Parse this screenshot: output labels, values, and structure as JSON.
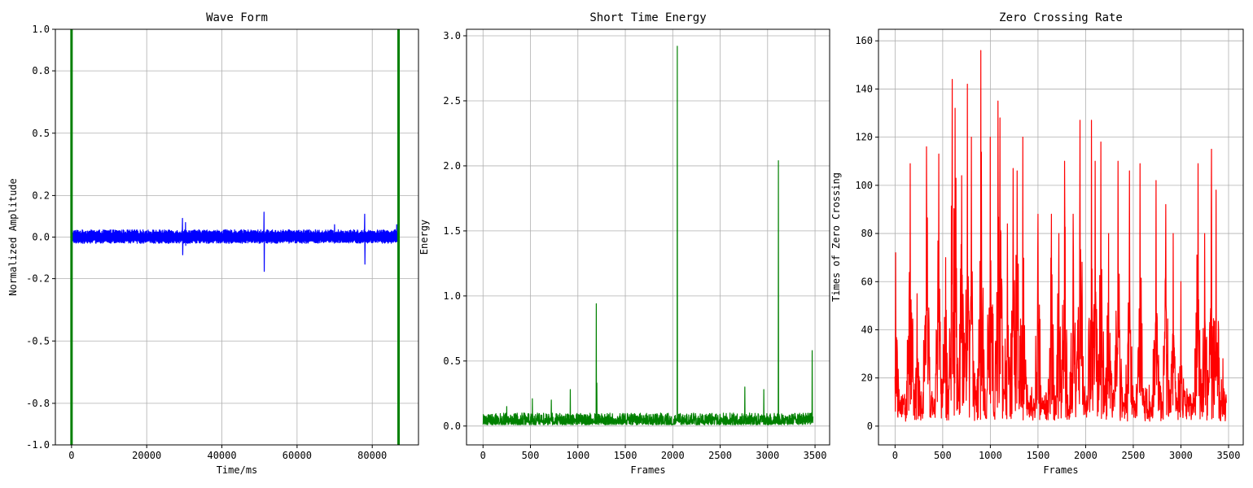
{
  "chart_data": [
    {
      "type": "line",
      "title": "Wave Form",
      "xlabel": "Time/ms",
      "ylabel": "Normalized Amplitude",
      "xlim": [
        -4300,
        92300
      ],
      "ylim": [
        -1.0,
        1.0
      ],
      "xticks": [
        0,
        20000,
        40000,
        60000,
        80000
      ],
      "xtick_labels": [
        "0",
        "20000",
        "40000",
        "60000",
        "80000"
      ],
      "yticks": [
        -1.0,
        -0.8,
        -0.5,
        -0.2,
        0.0,
        0.2,
        0.5,
        0.8,
        1.0
      ],
      "ytick_labels": [
        "-1.0",
        "-0.8",
        "-0.5",
        "-0.2",
        "0.0",
        "0.2",
        "0.5",
        "0.8",
        "1.0"
      ],
      "grid": true,
      "series": [
        {
          "color": "#0000ff",
          "kind": "waveform",
          "x_range": [
            0,
            87000
          ],
          "noise_band": [
            -0.03,
            0.035
          ],
          "spikes": [
            [
              29500,
              0.09,
              -0.085
            ],
            [
              30300,
              0.07,
              -0.04
            ],
            [
              51200,
              0.12,
              -0.165
            ],
            [
              70000,
              0.06,
              -0.02
            ],
            [
              78000,
              0.11,
              -0.13
            ],
            [
              86500,
              0.06,
              -0.02
            ]
          ]
        }
      ],
      "vlines": [
        {
          "x": 0,
          "color": "#008000"
        },
        {
          "x": 87000,
          "color": "#008000"
        }
      ]
    },
    {
      "type": "line",
      "title": "Short Time Energy",
      "xlabel": "Frames",
      "ylabel": "Energy",
      "xlim": [
        -174,
        3654
      ],
      "ylim": [
        -0.145,
        3.05
      ],
      "xticks": [
        0,
        500,
        1000,
        1500,
        2000,
        2500,
        3000,
        3500
      ],
      "xtick_labels": [
        "0",
        "500",
        "1000",
        "1500",
        "2000",
        "2500",
        "3000",
        "3500"
      ],
      "yticks": [
        0.0,
        0.5,
        1.0,
        1.5,
        2.0,
        2.5,
        3.0
      ],
      "ytick_labels": [
        "0.0",
        "0.5",
        "1.0",
        "1.5",
        "2.0",
        "2.5",
        "3.0"
      ],
      "grid": true,
      "series": [
        {
          "color": "#008000",
          "kind": "energy",
          "n_frames": 3480,
          "baseline": [
            0.01,
            0.1
          ],
          "peaks": [
            [
              1195,
              0.94
            ],
            [
              1200,
              0.33
            ],
            [
              2048,
              2.92
            ],
            [
              3115,
              2.04
            ],
            [
              3470,
              0.58
            ],
            [
              2960,
              0.28
            ],
            [
              2760,
              0.3
            ],
            [
              920,
              0.28
            ],
            [
              520,
              0.21
            ],
            [
              720,
              0.2
            ],
            [
              250,
              0.15
            ]
          ]
        }
      ]
    },
    {
      "type": "line",
      "title": "Zero Crossing Rate",
      "xlabel": "Frames",
      "ylabel": "Times of Zero Crossing",
      "xlim": [
        -174,
        3654
      ],
      "ylim": [
        -7.8,
        164.8
      ],
      "xticks": [
        0,
        500,
        1000,
        1500,
        2000,
        2500,
        3000,
        3500
      ],
      "xtick_labels": [
        "0",
        "500",
        "1000",
        "1500",
        "2000",
        "2500",
        "3000",
        "3500"
      ],
      "yticks": [
        0,
        20,
        40,
        60,
        80,
        100,
        120,
        140,
        160
      ],
      "ytick_labels": [
        "0",
        "20",
        "40",
        "60",
        "80",
        "100",
        "120",
        "140",
        "160"
      ],
      "grid": true,
      "series": [
        {
          "color": "#ff0000",
          "kind": "zcr",
          "n_frames": 3480,
          "peaks": [
            [
              5,
              72
            ],
            [
              160,
              109
            ],
            [
              230,
              55
            ],
            [
              330,
              116
            ],
            [
              460,
              113
            ],
            [
              530,
              70
            ],
            [
              600,
              144
            ],
            [
              630,
              132
            ],
            [
              700,
              104
            ],
            [
              760,
              142
            ],
            [
              800,
              120
            ],
            [
              900,
              156
            ],
            [
              1000,
              120
            ],
            [
              1080,
              135
            ],
            [
              1100,
              128
            ],
            [
              1180,
              84
            ],
            [
              1240,
              107
            ],
            [
              1280,
              106
            ],
            [
              1340,
              120
            ],
            [
              1500,
              88
            ],
            [
              1640,
              88
            ],
            [
              1720,
              80
            ],
            [
              1780,
              110
            ],
            [
              1870,
              88
            ],
            [
              1940,
              127
            ],
            [
              2060,
              127
            ],
            [
              2100,
              110
            ],
            [
              2160,
              118
            ],
            [
              2240,
              80
            ],
            [
              2340,
              110
            ],
            [
              2460,
              106
            ],
            [
              2570,
              109
            ],
            [
              2740,
              102
            ],
            [
              2840,
              92
            ],
            [
              2920,
              80
            ],
            [
              3000,
              60
            ],
            [
              3180,
              109
            ],
            [
              3250,
              80
            ],
            [
              3320,
              115
            ],
            [
              3370,
              98
            ],
            [
              3440,
              28
            ]
          ]
        }
      ]
    }
  ]
}
